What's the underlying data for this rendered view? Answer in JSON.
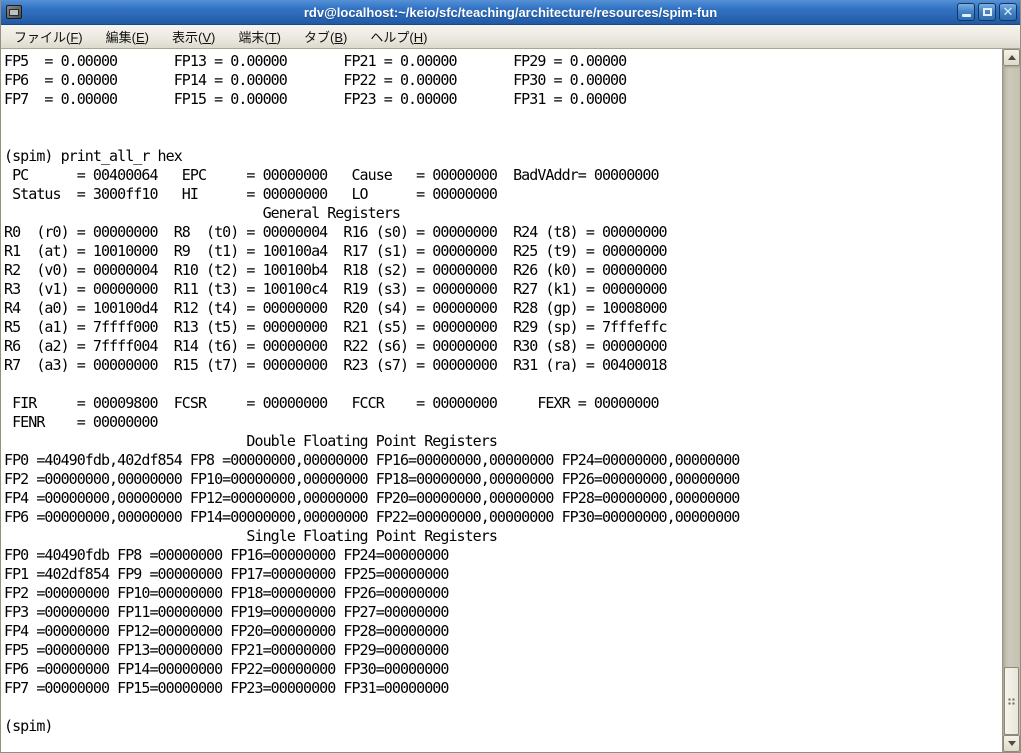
{
  "window": {
    "title": "rdv@localhost:~/keio/sfc/teaching/architecture/resources/spim-fun",
    "controls": {
      "minimize": "minimize",
      "maximize": "maximize",
      "close": "close"
    }
  },
  "menubar": {
    "items": [
      {
        "pre": "ファイル(",
        "key": "F",
        "post": ")"
      },
      {
        "pre": "編集(",
        "key": "E",
        "post": ")"
      },
      {
        "pre": "表示(",
        "key": "V",
        "post": ")"
      },
      {
        "pre": "端末(",
        "key": "T",
        "post": ")"
      },
      {
        "pre": "タブ(",
        "key": "B",
        "post": ")"
      },
      {
        "pre": "ヘルプ(",
        "key": "H",
        "post": ")"
      }
    ]
  },
  "terminal": {
    "prompt": "(spim)",
    "last_command": "print_all_r hex",
    "lines": [
      "FP5  = 0.00000       FP13 = 0.00000       FP21 = 0.00000       FP29 = 0.00000",
      "FP6  = 0.00000       FP14 = 0.00000       FP22 = 0.00000       FP30 = 0.00000",
      "FP7  = 0.00000       FP15 = 0.00000       FP23 = 0.00000       FP31 = 0.00000",
      "",
      "",
      "(spim) print_all_r hex",
      " PC      = 00400064   EPC     = 00000000   Cause   = 00000000  BadVAddr= 00000000",
      " Status  = 3000ff10   HI      = 00000000   LO      = 00000000",
      "                                General Registers",
      "R0  (r0) = 00000000  R8  (t0) = 00000004  R16 (s0) = 00000000  R24 (t8) = 00000000",
      "R1  (at) = 10010000  R9  (t1) = 100100a4  R17 (s1) = 00000000  R25 (t9) = 00000000",
      "R2  (v0) = 00000004  R10 (t2) = 100100b4  R18 (s2) = 00000000  R26 (k0) = 00000000",
      "R3  (v1) = 00000000  R11 (t3) = 100100c4  R19 (s3) = 00000000  R27 (k1) = 00000000",
      "R4  (a0) = 100100d4  R12 (t4) = 00000000  R20 (s4) = 00000000  R28 (gp) = 10008000",
      "R5  (a1) = 7ffff000  R13 (t5) = 00000000  R21 (s5) = 00000000  R29 (sp) = 7fffeffc",
      "R6  (a2) = 7ffff004  R14 (t6) = 00000000  R22 (s6) = 00000000  R30 (s8) = 00000000",
      "R7  (a3) = 00000000  R15 (t7) = 00000000  R23 (s7) = 00000000  R31 (ra) = 00400018",
      "",
      " FIR     = 00009800  FCSR     = 00000000   FCCR    = 00000000     FEXR = 00000000",
      " FENR    = 00000000",
      "                              Double Floating Point Registers",
      "FP0 =40490fdb,402df854 FP8 =00000000,00000000 FP16=00000000,00000000 FP24=00000000,00000000",
      "FP2 =00000000,00000000 FP10=00000000,00000000 FP18=00000000,00000000 FP26=00000000,00000000",
      "FP4 =00000000,00000000 FP12=00000000,00000000 FP20=00000000,00000000 FP28=00000000,00000000",
      "FP6 =00000000,00000000 FP14=00000000,00000000 FP22=00000000,00000000 FP30=00000000,00000000",
      "                              Single Floating Point Registers",
      "FP0 =40490fdb FP8 =00000000 FP16=00000000 FP24=00000000",
      "FP1 =402df854 FP9 =00000000 FP17=00000000 FP25=00000000",
      "FP2 =00000000 FP10=00000000 FP18=00000000 FP26=00000000",
      "FP3 =00000000 FP11=00000000 FP19=00000000 FP27=00000000",
      "FP4 =00000000 FP12=00000000 FP20=00000000 FP28=00000000",
      "FP5 =00000000 FP13=00000000 FP21=00000000 FP29=00000000",
      "FP6 =00000000 FP14=00000000 FP22=00000000 FP30=00000000",
      "FP7 =00000000 FP15=00000000 FP23=00000000 FP31=00000000",
      "",
      "(spim) "
    ]
  },
  "colors": {
    "titlebar_blue": "#2f6fc1",
    "menubar_bg": "#ebe8df",
    "terminal_bg": "#ffffff",
    "terminal_fg": "#000000",
    "scrollbar_trough": "#c9c5b6",
    "scrollbar_thumb": "#efede3"
  }
}
